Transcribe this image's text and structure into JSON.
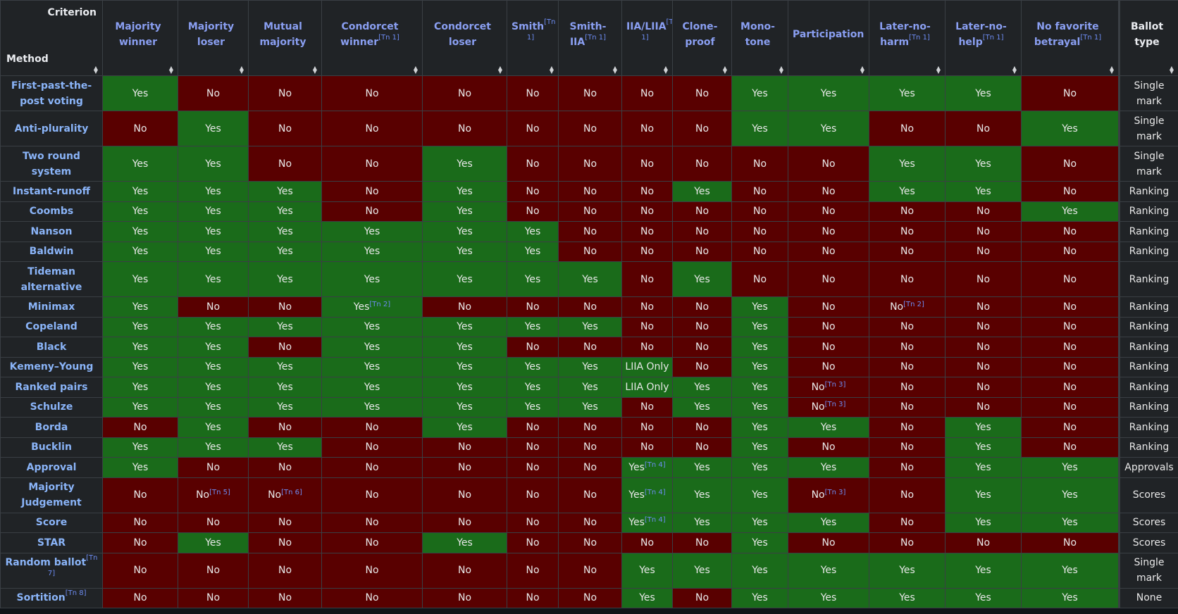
{
  "header": {
    "criterion_label": "Criterion",
    "method_label": "Method",
    "columns": [
      {
        "label": "Majority winner",
        "sup": ""
      },
      {
        "label": "Majority loser",
        "sup": ""
      },
      {
        "label": "Mutual majority",
        "sup": ""
      },
      {
        "label": "Condorcet winner",
        "sup": "[Tn 1]"
      },
      {
        "label": "Condorcet loser",
        "sup": ""
      },
      {
        "label": "Smith",
        "sup": "[Tn 1]"
      },
      {
        "label": "Smith-IIA",
        "sup": "[Tn 1]"
      },
      {
        "label": "IIA/LIIA",
        "sup": "[Tn 1]"
      },
      {
        "label": "Clone-proof",
        "sup": ""
      },
      {
        "label": "Mono-tone",
        "sup": ""
      },
      {
        "label": "Participation",
        "sup": ""
      },
      {
        "label": "Later-no-harm",
        "sup": "[Tn 1]"
      },
      {
        "label": "Later-no-help",
        "sup": "[Tn 1]"
      },
      {
        "label": "No favorite betrayal",
        "sup": "[Tn 1]"
      }
    ],
    "ballot_type_label": "Ballot type"
  },
  "rows": [
    {
      "method": "First-past-the-post voting",
      "msup": "",
      "h": "tall",
      "cells": [
        [
          "Yes",
          ""
        ],
        [
          "No",
          ""
        ],
        [
          "No",
          ""
        ],
        [
          "No",
          ""
        ],
        [
          "No",
          ""
        ],
        [
          "No",
          ""
        ],
        [
          "No",
          ""
        ],
        [
          "No",
          ""
        ],
        [
          "No",
          ""
        ],
        [
          "Yes",
          ""
        ],
        [
          "Yes",
          ""
        ],
        [
          "Yes",
          ""
        ],
        [
          "Yes",
          ""
        ],
        [
          "No",
          ""
        ]
      ],
      "ballot": "Single mark"
    },
    {
      "method": "Anti-plurality",
      "msup": "",
      "h": "tall",
      "cells": [
        [
          "No",
          ""
        ],
        [
          "Yes",
          ""
        ],
        [
          "No",
          ""
        ],
        [
          "No",
          ""
        ],
        [
          "No",
          ""
        ],
        [
          "No",
          ""
        ],
        [
          "No",
          ""
        ],
        [
          "No",
          ""
        ],
        [
          "No",
          ""
        ],
        [
          "Yes",
          ""
        ],
        [
          "Yes",
          ""
        ],
        [
          "No",
          ""
        ],
        [
          "No",
          ""
        ],
        [
          "Yes",
          ""
        ]
      ],
      "ballot": "Single mark"
    },
    {
      "method": "Two round system",
      "msup": "",
      "h": "tall",
      "cells": [
        [
          "Yes",
          ""
        ],
        [
          "Yes",
          ""
        ],
        [
          "No",
          ""
        ],
        [
          "No",
          ""
        ],
        [
          "Yes",
          ""
        ],
        [
          "No",
          ""
        ],
        [
          "No",
          ""
        ],
        [
          "No",
          ""
        ],
        [
          "No",
          ""
        ],
        [
          "No",
          ""
        ],
        [
          "No",
          ""
        ],
        [
          "Yes",
          ""
        ],
        [
          "Yes",
          ""
        ],
        [
          "No",
          ""
        ]
      ],
      "ballot": "Single mark"
    },
    {
      "method": "Instant-runoff",
      "msup": "",
      "h": "short",
      "cells": [
        [
          "Yes",
          ""
        ],
        [
          "Yes",
          ""
        ],
        [
          "Yes",
          ""
        ],
        [
          "No",
          ""
        ],
        [
          "Yes",
          ""
        ],
        [
          "No",
          ""
        ],
        [
          "No",
          ""
        ],
        [
          "No",
          ""
        ],
        [
          "Yes",
          ""
        ],
        [
          "No",
          ""
        ],
        [
          "No",
          ""
        ],
        [
          "Yes",
          ""
        ],
        [
          "Yes",
          ""
        ],
        [
          "No",
          ""
        ]
      ],
      "ballot": "Ranking"
    },
    {
      "method": "Coombs",
      "msup": "",
      "h": "short",
      "cells": [
        [
          "Yes",
          ""
        ],
        [
          "Yes",
          ""
        ],
        [
          "Yes",
          ""
        ],
        [
          "No",
          ""
        ],
        [
          "Yes",
          ""
        ],
        [
          "No",
          ""
        ],
        [
          "No",
          ""
        ],
        [
          "No",
          ""
        ],
        [
          "No",
          ""
        ],
        [
          "No",
          ""
        ],
        [
          "No",
          ""
        ],
        [
          "No",
          ""
        ],
        [
          "No",
          ""
        ],
        [
          "Yes",
          ""
        ]
      ],
      "ballot": "Ranking"
    },
    {
      "method": "Nanson",
      "msup": "",
      "h": "short",
      "cells": [
        [
          "Yes",
          ""
        ],
        [
          "Yes",
          ""
        ],
        [
          "Yes",
          ""
        ],
        [
          "Yes",
          ""
        ],
        [
          "Yes",
          ""
        ],
        [
          "Yes",
          ""
        ],
        [
          "No",
          ""
        ],
        [
          "No",
          ""
        ],
        [
          "No",
          ""
        ],
        [
          "No",
          ""
        ],
        [
          "No",
          ""
        ],
        [
          "No",
          ""
        ],
        [
          "No",
          ""
        ],
        [
          "No",
          ""
        ]
      ],
      "ballot": "Ranking"
    },
    {
      "method": "Baldwin",
      "msup": "",
      "h": "short",
      "cells": [
        [
          "Yes",
          ""
        ],
        [
          "Yes",
          ""
        ],
        [
          "Yes",
          ""
        ],
        [
          "Yes",
          ""
        ],
        [
          "Yes",
          ""
        ],
        [
          "Yes",
          ""
        ],
        [
          "No",
          ""
        ],
        [
          "No",
          ""
        ],
        [
          "No",
          ""
        ],
        [
          "No",
          ""
        ],
        [
          "No",
          ""
        ],
        [
          "No",
          ""
        ],
        [
          "No",
          ""
        ],
        [
          "No",
          ""
        ]
      ],
      "ballot": "Ranking"
    },
    {
      "method": "Tideman alternative",
      "msup": "",
      "h": "tall",
      "cells": [
        [
          "Yes",
          ""
        ],
        [
          "Yes",
          ""
        ],
        [
          "Yes",
          ""
        ],
        [
          "Yes",
          ""
        ],
        [
          "Yes",
          ""
        ],
        [
          "Yes",
          ""
        ],
        [
          "Yes",
          ""
        ],
        [
          "No",
          ""
        ],
        [
          "Yes",
          ""
        ],
        [
          "No",
          ""
        ],
        [
          "No",
          ""
        ],
        [
          "No",
          ""
        ],
        [
          "No",
          ""
        ],
        [
          "No",
          ""
        ]
      ],
      "ballot": "Ranking"
    },
    {
      "method": "Minimax",
      "msup": "",
      "h": "short",
      "cells": [
        [
          "Yes",
          ""
        ],
        [
          "No",
          ""
        ],
        [
          "No",
          ""
        ],
        [
          "Yes",
          "[Tn 2]"
        ],
        [
          "No",
          ""
        ],
        [
          "No",
          ""
        ],
        [
          "No",
          ""
        ],
        [
          "No",
          ""
        ],
        [
          "No",
          ""
        ],
        [
          "Yes",
          ""
        ],
        [
          "No",
          ""
        ],
        [
          "No",
          "[Tn 2]"
        ],
        [
          "No",
          ""
        ],
        [
          "No",
          ""
        ]
      ],
      "ballot": "Ranking"
    },
    {
      "method": "Copeland",
      "msup": "",
      "h": "short",
      "cells": [
        [
          "Yes",
          ""
        ],
        [
          "Yes",
          ""
        ],
        [
          "Yes",
          ""
        ],
        [
          "Yes",
          ""
        ],
        [
          "Yes",
          ""
        ],
        [
          "Yes",
          ""
        ],
        [
          "Yes",
          ""
        ],
        [
          "No",
          ""
        ],
        [
          "No",
          ""
        ],
        [
          "Yes",
          ""
        ],
        [
          "No",
          ""
        ],
        [
          "No",
          ""
        ],
        [
          "No",
          ""
        ],
        [
          "No",
          ""
        ]
      ],
      "ballot": "Ranking"
    },
    {
      "method": "Black",
      "msup": "",
      "h": "short",
      "cells": [
        [
          "Yes",
          ""
        ],
        [
          "Yes",
          ""
        ],
        [
          "No",
          ""
        ],
        [
          "Yes",
          ""
        ],
        [
          "Yes",
          ""
        ],
        [
          "No",
          ""
        ],
        [
          "No",
          ""
        ],
        [
          "No",
          ""
        ],
        [
          "No",
          ""
        ],
        [
          "Yes",
          ""
        ],
        [
          "No",
          ""
        ],
        [
          "No",
          ""
        ],
        [
          "No",
          ""
        ],
        [
          "No",
          ""
        ]
      ],
      "ballot": "Ranking"
    },
    {
      "method": "Kemeny–Young",
      "msup": "",
      "h": "short",
      "cells": [
        [
          "Yes",
          ""
        ],
        [
          "Yes",
          ""
        ],
        [
          "Yes",
          ""
        ],
        [
          "Yes",
          ""
        ],
        [
          "Yes",
          ""
        ],
        [
          "Yes",
          ""
        ],
        [
          "Yes",
          ""
        ],
        [
          "LIIA Only",
          ""
        ],
        [
          "No",
          ""
        ],
        [
          "Yes",
          ""
        ],
        [
          "No",
          ""
        ],
        [
          "No",
          ""
        ],
        [
          "No",
          ""
        ],
        [
          "No",
          ""
        ]
      ],
      "ballot": "Ranking"
    },
    {
      "method": "Ranked pairs",
      "msup": "",
      "h": "short",
      "cells": [
        [
          "Yes",
          ""
        ],
        [
          "Yes",
          ""
        ],
        [
          "Yes",
          ""
        ],
        [
          "Yes",
          ""
        ],
        [
          "Yes",
          ""
        ],
        [
          "Yes",
          ""
        ],
        [
          "Yes",
          ""
        ],
        [
          "LIIA Only",
          ""
        ],
        [
          "Yes",
          ""
        ],
        [
          "Yes",
          ""
        ],
        [
          "No",
          "[Tn 3]"
        ],
        [
          "No",
          ""
        ],
        [
          "No",
          ""
        ],
        [
          "No",
          ""
        ]
      ],
      "ballot": "Ranking"
    },
    {
      "method": "Schulze",
      "msup": "",
      "h": "short",
      "cells": [
        [
          "Yes",
          ""
        ],
        [
          "Yes",
          ""
        ],
        [
          "Yes",
          ""
        ],
        [
          "Yes",
          ""
        ],
        [
          "Yes",
          ""
        ],
        [
          "Yes",
          ""
        ],
        [
          "Yes",
          ""
        ],
        [
          "No",
          ""
        ],
        [
          "Yes",
          ""
        ],
        [
          "Yes",
          ""
        ],
        [
          "No",
          "[Tn 3]"
        ],
        [
          "No",
          ""
        ],
        [
          "No",
          ""
        ],
        [
          "No",
          ""
        ]
      ],
      "ballot": "Ranking"
    },
    {
      "method": "Borda",
      "msup": "",
      "h": "short",
      "cells": [
        [
          "No",
          ""
        ],
        [
          "Yes",
          ""
        ],
        [
          "No",
          ""
        ],
        [
          "No",
          ""
        ],
        [
          "Yes",
          ""
        ],
        [
          "No",
          ""
        ],
        [
          "No",
          ""
        ],
        [
          "No",
          ""
        ],
        [
          "No",
          ""
        ],
        [
          "Yes",
          ""
        ],
        [
          "Yes",
          ""
        ],
        [
          "No",
          ""
        ],
        [
          "Yes",
          ""
        ],
        [
          "No",
          ""
        ]
      ],
      "ballot": "Ranking"
    },
    {
      "method": "Bucklin",
      "msup": "",
      "h": "short",
      "cells": [
        [
          "Yes",
          ""
        ],
        [
          "Yes",
          ""
        ],
        [
          "Yes",
          ""
        ],
        [
          "No",
          ""
        ],
        [
          "No",
          ""
        ],
        [
          "No",
          ""
        ],
        [
          "No",
          ""
        ],
        [
          "No",
          ""
        ],
        [
          "No",
          ""
        ],
        [
          "Yes",
          ""
        ],
        [
          "No",
          ""
        ],
        [
          "No",
          ""
        ],
        [
          "Yes",
          ""
        ],
        [
          "No",
          ""
        ]
      ],
      "ballot": "Ranking"
    },
    {
      "method": "Approval",
      "msup": "",
      "h": "short",
      "cells": [
        [
          "Yes",
          ""
        ],
        [
          "No",
          ""
        ],
        [
          "No",
          ""
        ],
        [
          "No",
          ""
        ],
        [
          "No",
          ""
        ],
        [
          "No",
          ""
        ],
        [
          "No",
          ""
        ],
        [
          "Yes",
          "[Tn 4]"
        ],
        [
          "Yes",
          ""
        ],
        [
          "Yes",
          ""
        ],
        [
          "Yes",
          ""
        ],
        [
          "No",
          ""
        ],
        [
          "Yes",
          ""
        ],
        [
          "Yes",
          ""
        ]
      ],
      "ballot": "Approvals"
    },
    {
      "method": "Majority Judgement",
      "msup": "",
      "h": "tall",
      "cells": [
        [
          "No",
          ""
        ],
        [
          "No",
          "[Tn 5]"
        ],
        [
          "No",
          "[Tn 6]"
        ],
        [
          "No",
          ""
        ],
        [
          "No",
          ""
        ],
        [
          "No",
          ""
        ],
        [
          "No",
          ""
        ],
        [
          "Yes",
          "[Tn 4]"
        ],
        [
          "Yes",
          ""
        ],
        [
          "Yes",
          ""
        ],
        [
          "No",
          "[Tn 3]"
        ],
        [
          "No",
          ""
        ],
        [
          "Yes",
          ""
        ],
        [
          "Yes",
          ""
        ]
      ],
      "ballot": "Scores"
    },
    {
      "method": "Score",
      "msup": "",
      "h": "short",
      "cells": [
        [
          "No",
          ""
        ],
        [
          "No",
          ""
        ],
        [
          "No",
          ""
        ],
        [
          "No",
          ""
        ],
        [
          "No",
          ""
        ],
        [
          "No",
          ""
        ],
        [
          "No",
          ""
        ],
        [
          "Yes",
          "[Tn 4]"
        ],
        [
          "Yes",
          ""
        ],
        [
          "Yes",
          ""
        ],
        [
          "Yes",
          ""
        ],
        [
          "No",
          ""
        ],
        [
          "Yes",
          ""
        ],
        [
          "Yes",
          ""
        ]
      ],
      "ballot": "Scores"
    },
    {
      "method": "STAR",
      "msup": "",
      "h": "short",
      "cells": [
        [
          "No",
          ""
        ],
        [
          "Yes",
          ""
        ],
        [
          "No",
          ""
        ],
        [
          "No",
          ""
        ],
        [
          "Yes",
          ""
        ],
        [
          "No",
          ""
        ],
        [
          "No",
          ""
        ],
        [
          "No",
          ""
        ],
        [
          "No",
          ""
        ],
        [
          "Yes",
          ""
        ],
        [
          "No",
          ""
        ],
        [
          "No",
          ""
        ],
        [
          "No",
          ""
        ],
        [
          "No",
          ""
        ]
      ],
      "ballot": "Scores"
    },
    {
      "method": "Random ballot",
      "msup": "[Tn 7]",
      "h": "tall",
      "cells": [
        [
          "No",
          ""
        ],
        [
          "No",
          ""
        ],
        [
          "No",
          ""
        ],
        [
          "No",
          ""
        ],
        [
          "No",
          ""
        ],
        [
          "No",
          ""
        ],
        [
          "No",
          ""
        ],
        [
          "Yes",
          ""
        ],
        [
          "Yes",
          ""
        ],
        [
          "Yes",
          ""
        ],
        [
          "Yes",
          ""
        ],
        [
          "Yes",
          ""
        ],
        [
          "Yes",
          ""
        ],
        [
          "Yes",
          ""
        ]
      ],
      "ballot": "Single mark"
    },
    {
      "method": "Sortition",
      "msup": "[Tn 8]",
      "h": "short",
      "cells": [
        [
          "No",
          ""
        ],
        [
          "No",
          ""
        ],
        [
          "No",
          ""
        ],
        [
          "No",
          ""
        ],
        [
          "No",
          ""
        ],
        [
          "No",
          ""
        ],
        [
          "No",
          ""
        ],
        [
          "Yes",
          ""
        ],
        [
          "No",
          ""
        ],
        [
          "Yes",
          ""
        ],
        [
          "Yes",
          ""
        ],
        [
          "Yes",
          ""
        ],
        [
          "Yes",
          ""
        ],
        [
          "Yes",
          ""
        ]
      ],
      "ballot": "None"
    }
  ],
  "colors": {
    "yes": "#1a6b1a",
    "no": "#590000",
    "header_bg": "#202326",
    "link": "#8ab4f8"
  },
  "icons": {
    "sort": "sort-arrows-icon"
  }
}
